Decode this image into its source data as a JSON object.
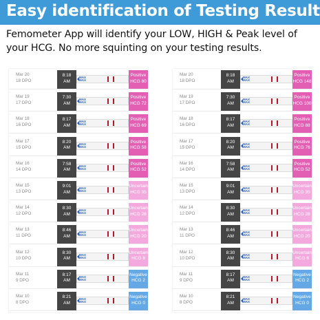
{
  "header": {
    "title": "Easy identification of Testing Results",
    "subtitle": "Femometer App will identify your LOW, HIGH & Peak level of your HCG. No more squinting on your testing results."
  },
  "strip_label": "MAX\nMAX",
  "colors": {
    "header": "#3f9ad8",
    "positive": "#e35fb3",
    "uncertain": "#f3a9dd",
    "negative": "#64a8e6",
    "time_bg": "#454545",
    "test_line": "#b01c2e"
  },
  "panels": [
    {
      "rows": [
        {
          "date": "Mar 20",
          "dpo": "18 DPO",
          "time": "8:18",
          "ampm": "AM",
          "result": "Positive",
          "hcg": "HCG 80",
          "status": "positive"
        },
        {
          "date": "Mar 19",
          "dpo": "17 DPO",
          "time": "7:30",
          "ampm": "AM",
          "result": "Positive",
          "hcg": "HCG 72",
          "status": "positive"
        },
        {
          "date": "Mar 18",
          "dpo": "16 DPO",
          "time": "8:17",
          "ampm": "AM",
          "result": "Positive",
          "hcg": "HCG 69",
          "status": "positive"
        },
        {
          "date": "Mar 17",
          "dpo": "15 DPO",
          "time": "8:20",
          "ampm": "AM",
          "result": "Positive",
          "hcg": "HCG 58",
          "status": "positive"
        },
        {
          "date": "Mar 16",
          "dpo": "14 DPO",
          "time": "7:58",
          "ampm": "AM",
          "result": "Positive",
          "hcg": "HCG 52",
          "status": "positive"
        },
        {
          "date": "Mar 15",
          "dpo": "13 DPO",
          "time": "9:01",
          "ampm": "AM",
          "result": "Uncertain",
          "hcg": "HCG 35",
          "status": "uncertain"
        },
        {
          "date": "Mar 14",
          "dpo": "12 DPO",
          "time": "8:30",
          "ampm": "AM",
          "result": "Uncertain",
          "hcg": "HCG 28",
          "status": "uncertain"
        },
        {
          "date": "Mar 13",
          "dpo": "11 DPO",
          "time": "8:46",
          "ampm": "AM",
          "result": "Uncertain",
          "hcg": "HCG 20",
          "status": "uncertain"
        },
        {
          "date": "Mar 12",
          "dpo": "10 DPO",
          "time": "8:30",
          "ampm": "AM",
          "result": "Uncertain",
          "hcg": "HCG 8",
          "status": "uncertain"
        },
        {
          "date": "Mar 11",
          "dpo": "9 DPO",
          "time": "8:17",
          "ampm": "AM",
          "result": "Negative",
          "hcg": "HCG 2",
          "status": "negative"
        },
        {
          "date": "Mar 10",
          "dpo": "8 DPO",
          "time": "8:21",
          "ampm": "AM",
          "result": "Negative",
          "hcg": "HCG 0",
          "status": "negative"
        }
      ]
    },
    {
      "rows": [
        {
          "date": "Mar 20",
          "dpo": "18 DPO",
          "time": "8:18",
          "ampm": "AM",
          "result": "Positive",
          "hcg": "HCG 148",
          "status": "positive"
        },
        {
          "date": "Mar 19",
          "dpo": "17 DPO",
          "time": "7:30",
          "ampm": "AM",
          "result": "Positive",
          "hcg": "HCG 100",
          "status": "positive"
        },
        {
          "date": "Mar 18",
          "dpo": "16 DPO",
          "time": "8:17",
          "ampm": "AM",
          "result": "Positive",
          "hcg": "HCG 88",
          "status": "positive"
        },
        {
          "date": "Mar 17",
          "dpo": "15 DPO",
          "time": "8:20",
          "ampm": "AM",
          "result": "Positive",
          "hcg": "HCG 76",
          "status": "positive"
        },
        {
          "date": "Mar 16",
          "dpo": "14 DPO",
          "time": "7:58",
          "ampm": "AM",
          "result": "Positive",
          "hcg": "HCG 52",
          "status": "positive"
        },
        {
          "date": "Mar 15",
          "dpo": "13 DPO",
          "time": "9:01",
          "ampm": "AM",
          "result": "Uncertain",
          "hcg": "HCG 35",
          "status": "uncertain"
        },
        {
          "date": "Mar 14",
          "dpo": "12 DPO",
          "time": "8:30",
          "ampm": "AM",
          "result": "Uncertain",
          "hcg": "HCG 28",
          "status": "uncertain"
        },
        {
          "date": "Mar 13",
          "dpo": "11 DPO",
          "time": "8:46",
          "ampm": "AM",
          "result": "Uncertain",
          "hcg": "HCG 20",
          "status": "uncertain"
        },
        {
          "date": "Mar 12",
          "dpo": "10 DPO",
          "time": "8:30",
          "ampm": "AM",
          "result": "Uncertain",
          "hcg": "HCG 8",
          "status": "uncertain"
        },
        {
          "date": "Mar 11",
          "dpo": "9 DPO",
          "time": "8:17",
          "ampm": "AM",
          "result": "Negative",
          "hcg": "HCG 2",
          "status": "negative"
        },
        {
          "date": "Mar 10",
          "dpo": "8 DPO",
          "time": "8:21",
          "ampm": "AM",
          "result": "Negative",
          "hcg": "HCG 0",
          "status": "negative"
        }
      ]
    }
  ]
}
